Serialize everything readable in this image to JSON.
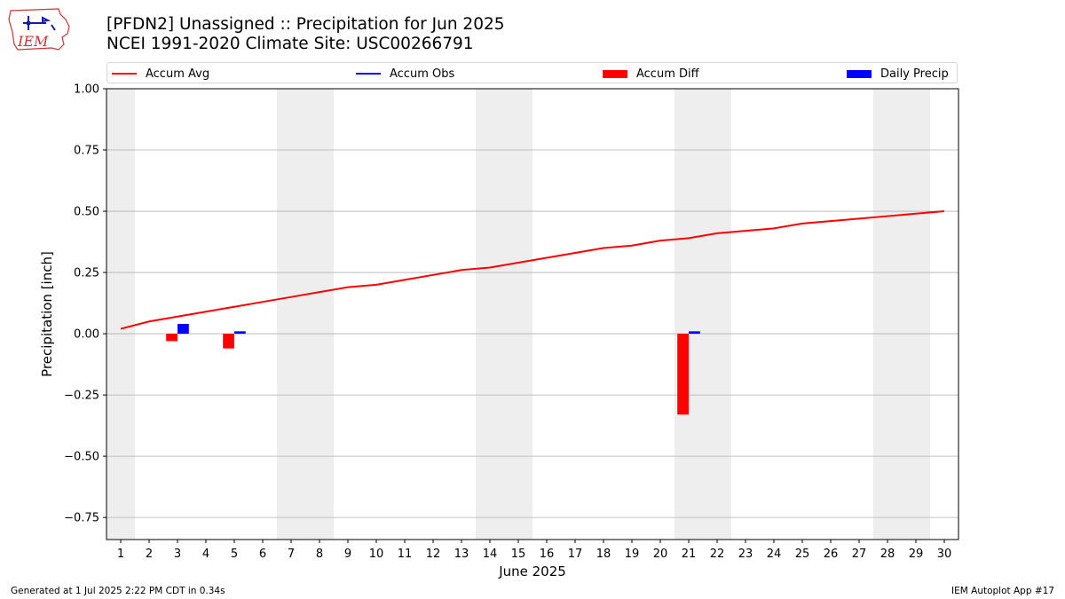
{
  "logo": {
    "text": "IEM"
  },
  "title": {
    "line1": "[PFDN2] Unassigned :: Precipitation for Jun 2025",
    "line2": "NCEI 1991-2020 Climate Site: USC00266791"
  },
  "colors": {
    "accum_avg": "#ff0000",
    "accum_obs": "#0000ff",
    "accum_diff": "#ff0000",
    "daily_precip": "#0000ff",
    "weekend_band": "#eeeeee",
    "grid": "#b0b0b0"
  },
  "legend": {
    "items": [
      {
        "label": "Accum Avg",
        "kind": "line",
        "color": "#ff0000"
      },
      {
        "label": "Accum Obs",
        "kind": "line",
        "color": "#0000ff"
      },
      {
        "label": "Accum Diff",
        "kind": "box",
        "color": "#ff0000"
      },
      {
        "label": "Daily Precip",
        "kind": "box",
        "color": "#0000ff"
      }
    ]
  },
  "chart_data": {
    "type": "line",
    "xlabel": "June 2025",
    "ylabel": "Precipitation [inch]",
    "ylim": [
      -0.84,
      1.0
    ],
    "xlim": [
      0.5,
      30.5
    ],
    "yticks": [
      1.0,
      0.75,
      0.5,
      0.25,
      0.0,
      -0.25,
      -0.5,
      -0.75
    ],
    "ytick_labels": [
      "1.00",
      "0.75",
      "0.50",
      "0.25",
      "0.00",
      "−0.25",
      "−0.50",
      "−0.75"
    ],
    "x": [
      1,
      2,
      3,
      4,
      5,
      6,
      7,
      8,
      9,
      10,
      11,
      12,
      13,
      14,
      15,
      16,
      17,
      18,
      19,
      20,
      21,
      22,
      23,
      24,
      25,
      26,
      27,
      28,
      29,
      30
    ],
    "xtick_labels": [
      "1",
      "2",
      "3",
      "4",
      "5",
      "6",
      "7",
      "8",
      "9",
      "10",
      "11",
      "12",
      "13",
      "14",
      "15",
      "16",
      "17",
      "18",
      "19",
      "20",
      "21",
      "22",
      "23",
      "24",
      "25",
      "26",
      "27",
      "28",
      "29",
      "30"
    ],
    "weekend_bands": [
      [
        0.5,
        1.5
      ],
      [
        6.5,
        8.5
      ],
      [
        13.5,
        15.5
      ],
      [
        20.5,
        22.5
      ],
      [
        27.5,
        29.5
      ]
    ],
    "grid": true,
    "legend_position": "top",
    "series": [
      {
        "name": "Accum Avg",
        "kind": "line",
        "values": [
          0.02,
          0.05,
          0.07,
          0.09,
          0.11,
          0.13,
          0.15,
          0.17,
          0.19,
          0.2,
          0.22,
          0.24,
          0.26,
          0.27,
          0.29,
          0.31,
          0.33,
          0.35,
          0.36,
          0.38,
          0.39,
          0.41,
          0.42,
          0.43,
          0.45,
          0.46,
          0.47,
          0.48,
          0.49,
          0.5
        ]
      },
      {
        "name": "Accum Diff",
        "kind": "bar",
        "points": [
          {
            "x": 3,
            "value": -0.03
          },
          {
            "x": 5,
            "value": -0.06
          },
          {
            "x": 21,
            "value": -0.33
          }
        ]
      },
      {
        "name": "Daily Precip",
        "kind": "bar",
        "points": [
          {
            "x": 3,
            "value": 0.04
          },
          {
            "x": 5,
            "value": 0.01
          },
          {
            "x": 21,
            "value": 0.01
          }
        ]
      }
    ]
  },
  "footer": {
    "left": "Generated at 1 Jul 2025 2:22 PM CDT in 0.34s",
    "right": "IEM Autoplot App #17"
  }
}
